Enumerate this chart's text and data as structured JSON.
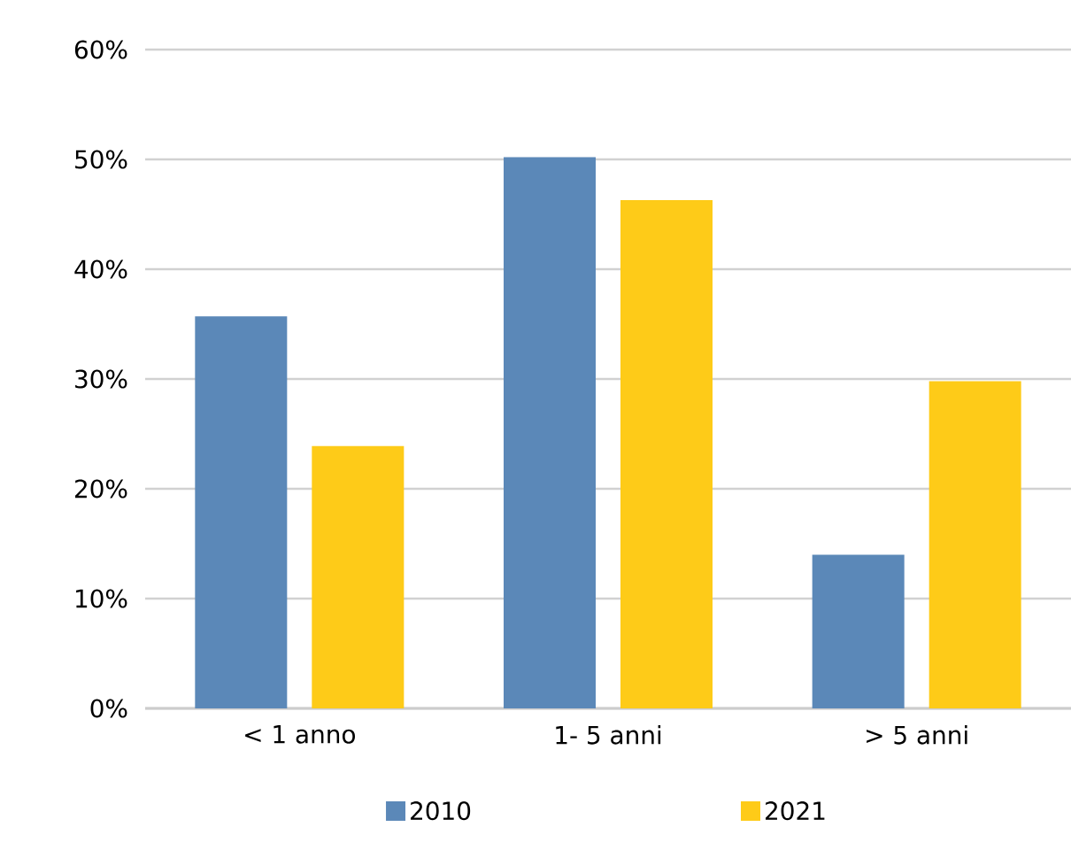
{
  "chart_data": {
    "type": "bar",
    "categories": [
      "< 1 anno",
      "1- 5 anni",
      "> 5 anni"
    ],
    "series": [
      {
        "name": "2010",
        "color": "#5b88b8",
        "values": [
          35.7,
          50.2,
          14.0
        ]
      },
      {
        "name": "2021",
        "color": "#fecb18",
        "values": [
          23.9,
          46.3,
          29.8
        ]
      }
    ],
    "ylim": [
      0,
      60
    ],
    "yticks": [
      {
        "value": 0,
        "label": "0%"
      },
      {
        "value": 10,
        "label": "10%"
      },
      {
        "value": 20,
        "label": "20%"
      },
      {
        "value": 30,
        "label": "30%"
      },
      {
        "value": 40,
        "label": "40%"
      },
      {
        "value": 50,
        "label": "50%"
      },
      {
        "value": 60,
        "label": "60%"
      }
    ],
    "grid": "y",
    "legend": "bottom"
  }
}
